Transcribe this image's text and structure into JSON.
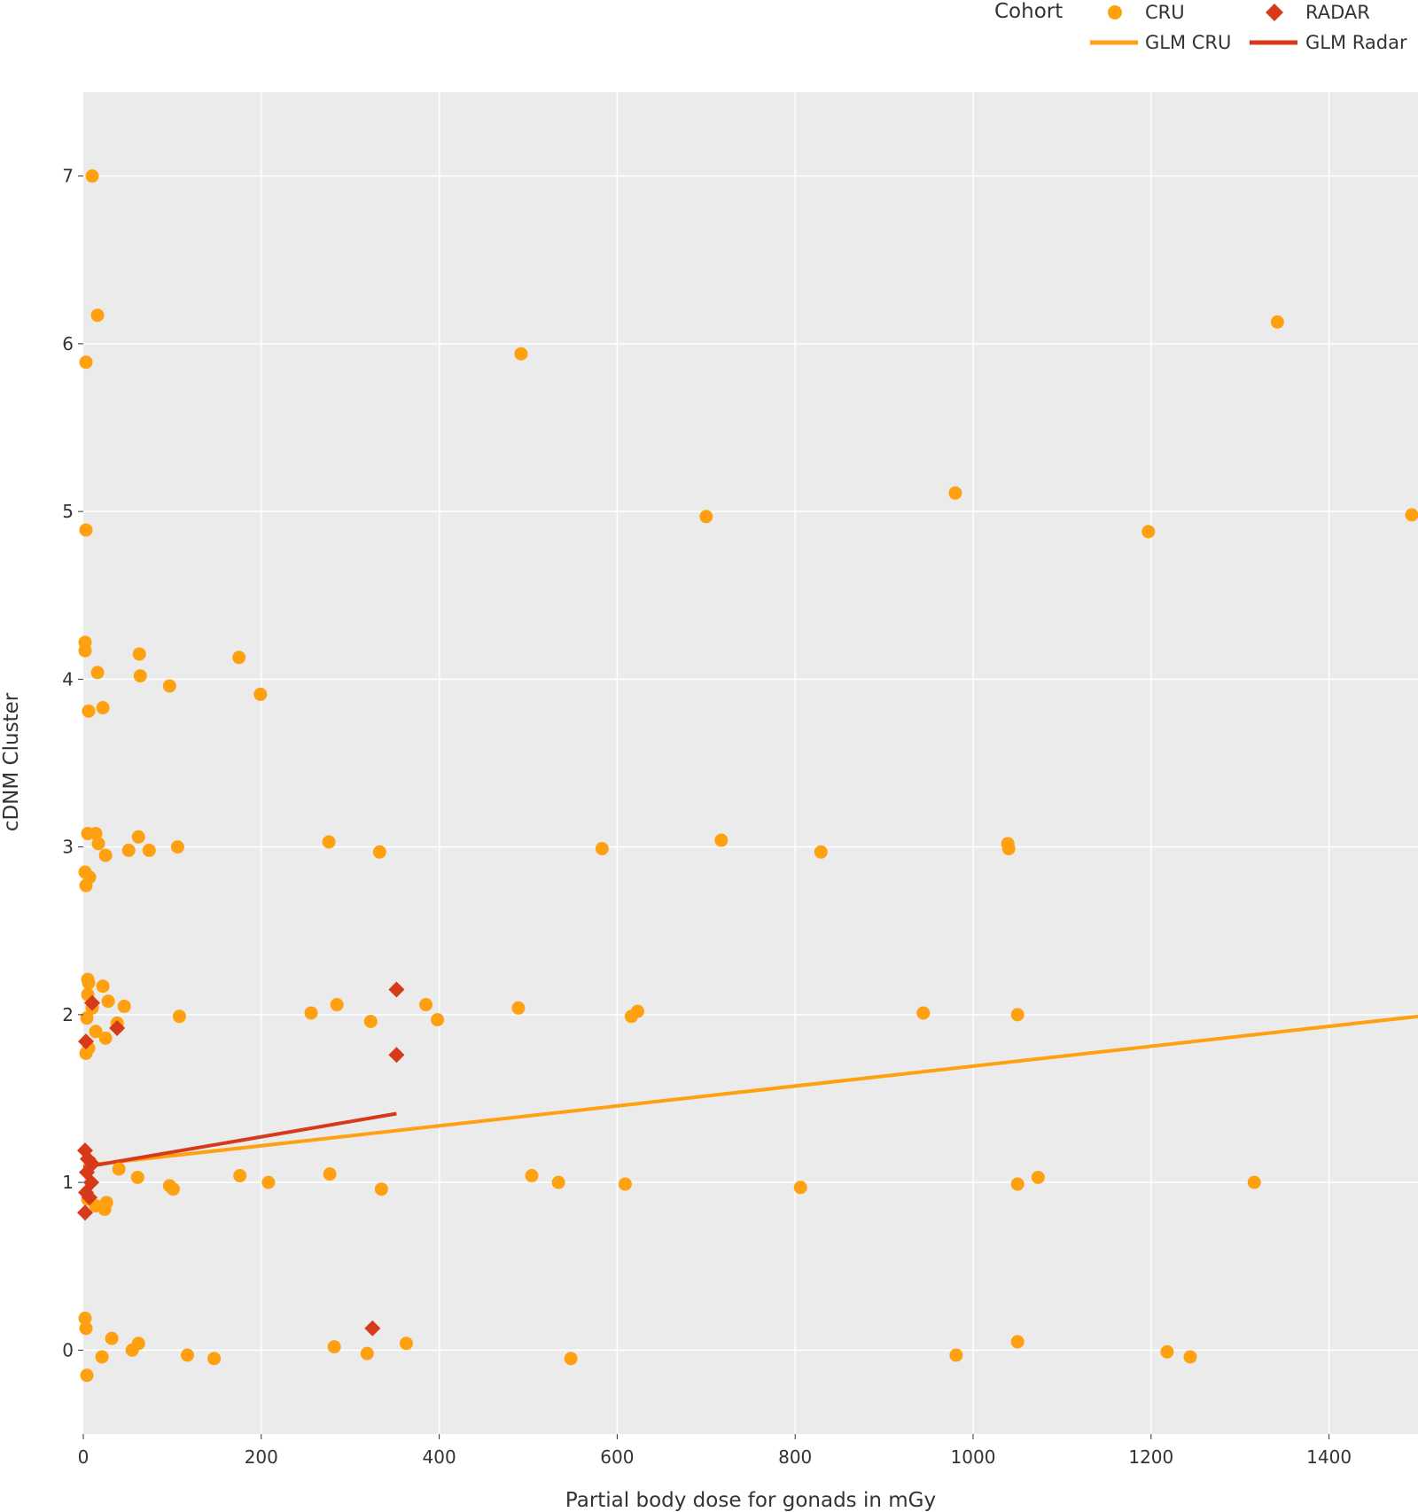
{
  "chart_data": {
    "type": "scatter",
    "xlabel": "Partial body dose for gonads in mGy",
    "ylabel": "cDNM Cluster",
    "xlim": [
      0,
      1500
    ],
    "ylim": [
      -0.5,
      7.5
    ],
    "x_ticks": [
      0,
      200,
      400,
      600,
      800,
      1000,
      1200,
      1400
    ],
    "y_ticks": [
      0,
      1,
      2,
      3,
      4,
      5,
      6,
      7
    ],
    "grid": true,
    "legend_placement": "top-right",
    "legend": {
      "title": "Cohort",
      "entries": [
        {
          "label": "CRU",
          "kind": "marker-circle",
          "color": "#FFA010"
        },
        {
          "label": "RADAR",
          "kind": "marker-diamond",
          "color": "#D63A1A"
        },
        {
          "label": "GLM CRU",
          "kind": "line",
          "color": "#FFA010"
        },
        {
          "label": "GLM Radar",
          "kind": "line",
          "color": "#D63A1A"
        }
      ]
    },
    "colors": {
      "CRU": "#FFA010",
      "RADAR": "#D63A1A",
      "background": "#EBEBEB"
    },
    "series": [
      {
        "name": "CRU",
        "marker": "circle",
        "color": "#FFA010",
        "points": [
          [
            10,
            7.0
          ],
          [
            16,
            6.17
          ],
          [
            3,
            5.89
          ],
          [
            492,
            5.94
          ],
          [
            1342,
            6.13
          ],
          [
            3,
            4.89
          ],
          [
            700,
            4.97
          ],
          [
            980,
            5.11
          ],
          [
            1197,
            4.88
          ],
          [
            1493,
            4.98
          ],
          [
            2,
            4.22
          ],
          [
            2,
            4.17
          ],
          [
            16,
            4.04
          ],
          [
            63,
            4.15
          ],
          [
            64,
            4.02
          ],
          [
            97,
            3.96
          ],
          [
            175,
            4.13
          ],
          [
            199,
            3.91
          ],
          [
            6,
            3.81
          ],
          [
            22,
            3.83
          ],
          [
            5,
            3.08
          ],
          [
            14,
            3.08
          ],
          [
            17,
            3.02
          ],
          [
            25,
            2.95
          ],
          [
            51,
            2.98
          ],
          [
            62,
            3.06
          ],
          [
            74,
            2.98
          ],
          [
            106,
            3.0
          ],
          [
            276,
            3.03
          ],
          [
            333,
            2.97
          ],
          [
            583,
            2.99
          ],
          [
            717,
            3.04
          ],
          [
            829,
            2.97
          ],
          [
            1039,
            3.02
          ],
          [
            1040,
            2.99
          ],
          [
            2,
            2.85
          ],
          [
            7,
            2.82
          ],
          [
            3,
            2.77
          ],
          [
            5,
            2.21
          ],
          [
            6,
            2.19
          ],
          [
            5,
            2.12
          ],
          [
            10,
            2.04
          ],
          [
            22,
            2.17
          ],
          [
            28,
            2.08
          ],
          [
            46,
            2.05
          ],
          [
            4,
            1.98
          ],
          [
            14,
            1.9
          ],
          [
            25,
            1.86
          ],
          [
            6,
            1.8
          ],
          [
            3,
            1.77
          ],
          [
            38,
            1.95
          ],
          [
            108,
            1.99
          ],
          [
            256,
            2.01
          ],
          [
            285,
            2.06
          ],
          [
            323,
            1.96
          ],
          [
            385,
            2.06
          ],
          [
            398,
            1.97
          ],
          [
            489,
            2.04
          ],
          [
            616,
            1.99
          ],
          [
            623,
            2.02
          ],
          [
            944,
            2.01
          ],
          [
            1050,
            2.0
          ],
          [
            8,
            1.12
          ],
          [
            40,
            1.08
          ],
          [
            61,
            1.03
          ],
          [
            97,
            0.98
          ],
          [
            101,
            0.96
          ],
          [
            176,
            1.04
          ],
          [
            208,
            1.0
          ],
          [
            277,
            1.05
          ],
          [
            335,
            0.96
          ],
          [
            504,
            1.04
          ],
          [
            534,
            1.0
          ],
          [
            609,
            0.99
          ],
          [
            806,
            0.97
          ],
          [
            1050,
            0.99
          ],
          [
            1073,
            1.03
          ],
          [
            1316,
            1.0
          ],
          [
            26,
            0.88
          ],
          [
            24,
            0.84
          ],
          [
            14,
            0.86
          ],
          [
            5,
            0.9
          ],
          [
            2,
            0.19
          ],
          [
            3,
            0.13
          ],
          [
            32,
            0.07
          ],
          [
            62,
            0.04
          ],
          [
            55,
            0.0
          ],
          [
            21,
            -0.04
          ],
          [
            4,
            -0.15
          ],
          [
            117,
            -0.03
          ],
          [
            147,
            -0.05
          ],
          [
            282,
            0.02
          ],
          [
            319,
            -0.02
          ],
          [
            363,
            0.04
          ],
          [
            548,
            -0.05
          ],
          [
            981,
            -0.03
          ],
          [
            1050,
            0.05
          ],
          [
            1218,
            -0.01
          ],
          [
            1244,
            -0.04
          ]
        ]
      },
      {
        "name": "RADAR",
        "marker": "diamond",
        "color": "#D63A1A",
        "points": [
          [
            352,
            2.15
          ],
          [
            352,
            1.76
          ],
          [
            325,
            0.13
          ],
          [
            38,
            1.92
          ],
          [
            10,
            2.07
          ],
          [
            3,
            1.84
          ],
          [
            2,
            1.19
          ],
          [
            5,
            1.14
          ],
          [
            10,
            1.11
          ],
          [
            4,
            1.06
          ],
          [
            9,
            1.0
          ],
          [
            3,
            0.94
          ],
          [
            7,
            0.91
          ],
          [
            2,
            0.82
          ]
        ]
      }
    ],
    "fit_lines": [
      {
        "name": "GLM CRU",
        "color": "#FFA010",
        "points": [
          [
            0,
            1.1
          ],
          [
            1500,
            1.99
          ]
        ]
      },
      {
        "name": "GLM Radar",
        "color": "#D63A1A",
        "points": [
          [
            0,
            1.09
          ],
          [
            352,
            1.41
          ]
        ]
      }
    ]
  }
}
